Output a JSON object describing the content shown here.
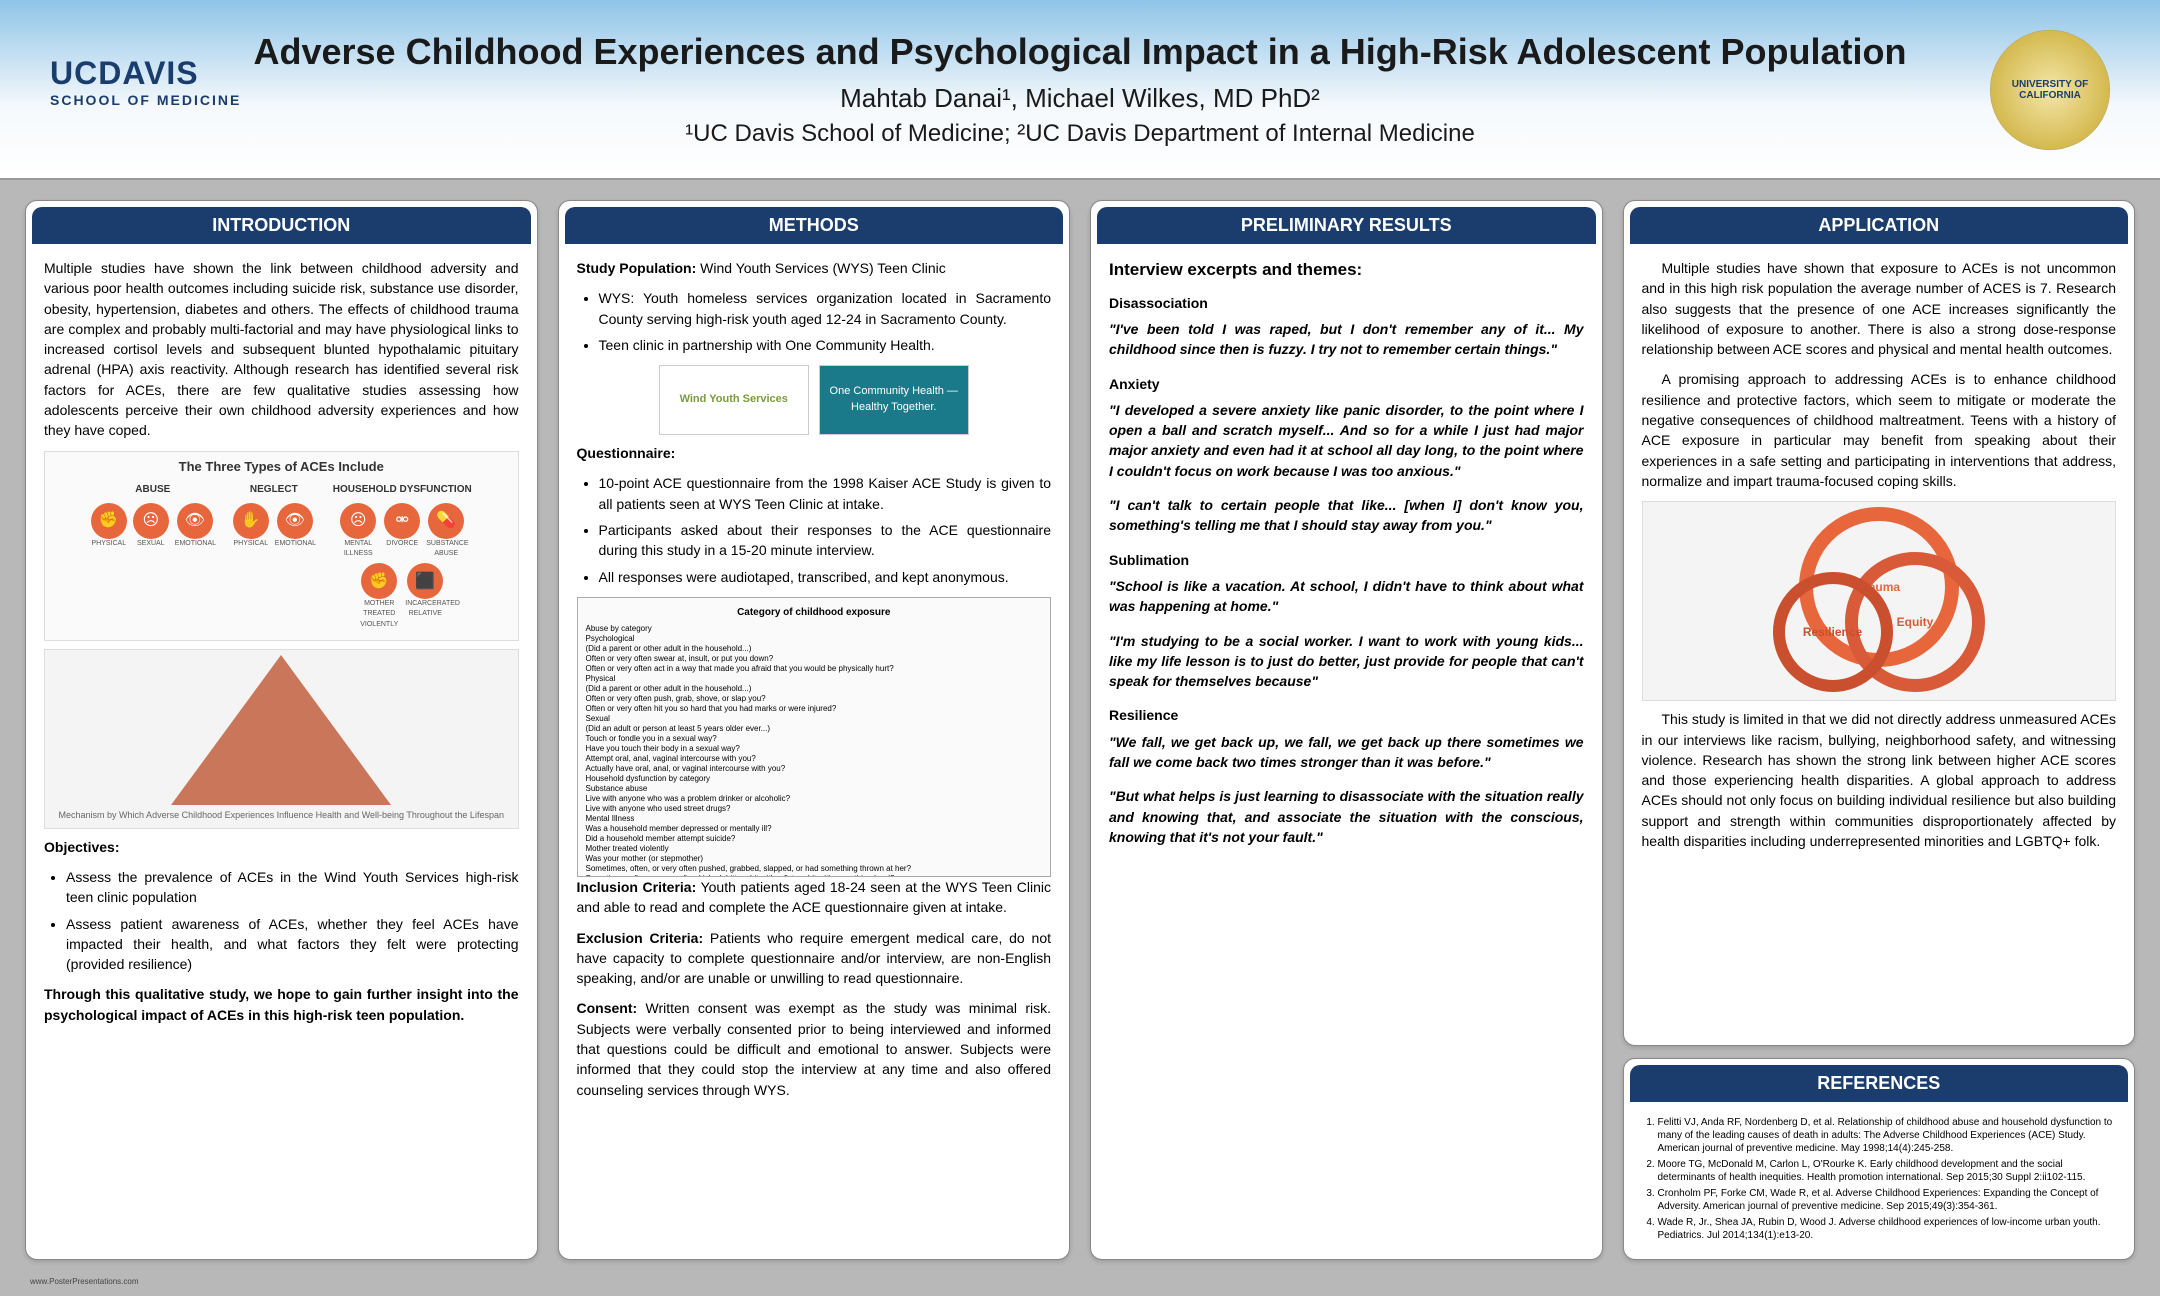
{
  "header": {
    "title": "Adverse Childhood Experiences and Psychological Impact in a High-Risk Adolescent Population",
    "authors": "Mahtab Danai¹, Michael Wilkes, MD PhD²",
    "affiliations": "¹UC Davis School of Medicine; ²UC Davis Department of Internal Medicine",
    "logo_left_main": "UCDAVIS",
    "logo_left_sub": "SCHOOL OF MEDICINE",
    "logo_right_text": "UNIVERSITY OF CALIFORNIA"
  },
  "introduction": {
    "heading": "INTRODUCTION",
    "para1": "Multiple studies have shown the link between childhood adversity and various poor health outcomes including suicide risk, substance use disorder, obesity, hypertension, diabetes and others. The effects of childhood trauma are complex and probably multi-factorial and may have physiological links to increased cortisol levels and subsequent blunted hypothalamic pituitary adrenal (HPA) axis reactivity. Although research has identified several risk factors for ACEs, there are few qualitative studies assessing how adolescents perceive their own childhood adversity experiences and how they have coped.",
    "ace_types_title": "The Three Types of ACEs Include",
    "ace_groups": [
      {
        "label": "ABUSE",
        "icons": [
          {
            "glyph": "✊",
            "caption": "PHYSICAL"
          },
          {
            "glyph": "☹",
            "caption": "SEXUAL"
          },
          {
            "glyph": "👁",
            "caption": "EMOTIONAL"
          }
        ]
      },
      {
        "label": "NEGLECT",
        "icons": [
          {
            "glyph": "✋",
            "caption": "PHYSICAL"
          },
          {
            "glyph": "👁",
            "caption": "EMOTIONAL"
          }
        ]
      },
      {
        "label": "HOUSEHOLD DYSFUNCTION",
        "icons": [
          {
            "glyph": "☹",
            "caption": "MENTAL ILLNESS"
          },
          {
            "glyph": "⚮",
            "caption": "DIVORCE"
          },
          {
            "glyph": "💊",
            "caption": "SUBSTANCE ABUSE"
          },
          {
            "glyph": "✊",
            "caption": "MOTHER TREATED VIOLENTLY"
          },
          {
            "glyph": "⬛",
            "caption": "INCARCERATED RELATIVE"
          }
        ]
      }
    ],
    "pyramid_caption": "Mechanism by Which Adverse Childhood Experiences Influence Health and Well-being Throughout the Lifespan",
    "objectives_heading": "Objectives:",
    "objectives": [
      "Assess the prevalence of ACEs in the Wind Youth Services high-risk teen clinic population",
      "Assess patient awareness of ACEs, whether they feel ACEs have impacted their health, and what factors they felt were protecting (provided resilience)"
    ],
    "closing": "Through this qualitative study, we hope to gain further insight into the psychological impact of ACEs in this high-risk teen population."
  },
  "methods": {
    "heading": "METHODS",
    "study_pop_label": "Study Population:",
    "study_pop_value": " Wind Youth Services (WYS) Teen Clinic",
    "study_pop_bullets": [
      "WYS: Youth homeless services organization located in Sacramento County serving high-risk youth aged 12-24 in Sacramento County.",
      "Teen clinic in partnership with One Community Health."
    ],
    "partner1": "Wind Youth Services",
    "partner2": "One Community Health — Healthy Together.",
    "questionnaire_label": "Questionnaire:",
    "questionnaire_bullets": [
      "10-point ACE questionnaire from the 1998 Kaiser ACE Study is given to all patients seen at WYS Teen Clinic at intake.",
      "Participants asked about their responses to the ACE questionnaire during this study in a 15-20 minute interview.",
      "All responses were audiotaped, transcribed, and kept anonymous."
    ],
    "questionnaire_fig_title": "Category of childhood exposure",
    "questionnaire_fig_text": "Abuse by category\nPsychological\n(Did a parent or other adult in the household...)\nOften or very often swear at, insult, or put you down?\nOften or very often act in a way that made you afraid that you would be physically hurt?\nPhysical\n(Did a parent or other adult in the household...)\nOften or very often push, grab, shove, or slap you?\nOften or very often hit you so hard that you had marks or were injured?\nSexual\n(Did an adult or person at least 5 years older ever...)\nTouch or fondle you in a sexual way?\nHave you touch their body in a sexual way?\nAttempt oral, anal, vaginal intercourse with you?\nActually have oral, anal, or vaginal intercourse with you?\nHousehold dysfunction by category\nSubstance abuse\nLive with anyone who was a problem drinker or alcoholic?\nLive with anyone who used street drugs?\nMental Illness\nWas a household member depressed or mentally ill?\nDid a household member attempt suicide?\nMother treated violently\nWas your mother (or stepmother)\nSometimes, often, or very often pushed, grabbed, slapped, or had something thrown at her?\nSometimes, often, or very often kicked, bitten, hit with a fist, or hit with something hard?\nEver repeatedly hit over at least a few minutes?\nEver threatened with, or hurt by, a knife or gun?\nCriminal behavior in household\nDid a household member go to prison?",
    "inclusion_label": "Inclusion Criteria:",
    "inclusion_text": " Youth patients aged 18-24 seen at the WYS Teen Clinic and able to read and complete the ACE questionnaire given at intake.",
    "exclusion_label": "Exclusion Criteria:",
    "exclusion_text": " Patients who require emergent medical care, do not have capacity to complete questionnaire and/or interview, are non-English speaking, and/or are unable or unwilling to read questionnaire.",
    "consent_label": "Consent:",
    "consent_text": " Written consent was exempt as the study was minimal risk. Subjects were verbally consented prior to being interviewed and informed that questions could be difficult and emotional to answer. Subjects were informed that they could stop the interview at any time and also offered counseling services through WYS."
  },
  "results": {
    "heading": "PRELIMINARY RESULTS",
    "intro": "Interview excerpts and themes:",
    "themes": [
      {
        "label": "Disassociation",
        "quotes": [
          "\"I've been told I was raped, but I don't remember any of it... My childhood since then is fuzzy. I try not to remember certain things.\""
        ]
      },
      {
        "label": "Anxiety",
        "quotes": [
          "\"I developed a severe anxiety like panic disorder, to the point where I open a ball and scratch myself... And so for a while I just had major major anxiety and even had it at school all day long, to the point where I couldn't focus on work because I was too anxious.\"",
          "\"I can't talk to certain people that like... [when I] don't know you, something's telling me that I should stay away from you.\""
        ]
      },
      {
        "label": "Sublimation",
        "quotes": [
          "\"School is like a vacation. At school, I didn't have to think about what was happening at home.\"",
          "\"I'm studying to be a social worker. I want to work with young kids... like my life lesson is to just do better, just provide for people that can't speak for themselves because\""
        ]
      },
      {
        "label": "Resilience",
        "quotes": [
          "\"We fall, we get back up, we fall, we get back up there sometimes we fall we come back two times stronger than it was before.\"",
          "\"But what helps is just learning to disassociate with the situation really and knowing that, and associate the situation with the conscious, knowing that it's not your fault.\""
        ]
      }
    ]
  },
  "application": {
    "heading": "APPLICATION",
    "para1": "Multiple studies have shown that exposure to ACEs is not uncommon and in this high risk population the average number of ACES is 7. Research also suggests that the presence of one ACE increases significantly the likelihood of exposure to another. There is also a strong dose-response relationship between ACE scores and physical and mental health outcomes.",
    "para2": "A promising approach to addressing ACEs is to enhance childhood resilience and protective factors, which seem to mitigate or moderate the negative consequences of childhood maltreatment. Teens with a history of ACE exposure in particular may benefit from speaking about their experiences in a safe setting and participating in interventions that address, normalize and impart trauma-focused coping skills.",
    "circles": [
      "Trauma",
      "Equity",
      "Resilience"
    ],
    "para3": "This study is limited in that we did not directly address unmeasured ACEs in our interviews like racism, bullying, neighborhood safety, and witnessing violence. Research has shown the strong link between higher ACE scores and those experiencing health disparities. A global approach to address ACEs should not only focus on building individual resilience but also building support and strength within communities disproportionately affected by health disparities including underrepresented minorities and LGBTQ+ folk."
  },
  "references": {
    "heading": "REFERENCES",
    "items": [
      "Felitti VJ, Anda RF, Nordenberg D, et al. Relationship of childhood abuse and household dysfunction to many of the leading causes of death in adults: The Adverse Childhood Experiences (ACE) Study. American journal of preventive medicine. May 1998;14(4):245-258.",
      "Moore TG, McDonald M, Carlon L, O'Rourke K. Early childhood development and the social determinants of health inequities. Health promotion international. Sep 2015;30 Suppl 2:ii102-115.",
      "Cronholm PF, Forke CM, Wade R, et al. Adverse Childhood Experiences: Expanding the Concept of Adversity. American journal of preventive medicine. Sep 2015;49(3):354-361.",
      "Wade R, Jr., Shea JA, Rubin D, Wood J. Adverse childhood experiences of low-income urban youth. Pediatrics. Jul 2014;134(1):e13-20."
    ]
  },
  "footer": "www.PosterPresentations.com",
  "colors": {
    "header_gradient_top": "#8fc4e8",
    "panel_header_bg": "#1a3d6d",
    "accent_orange": "#e8663c",
    "body_bg": "#b8b8b8"
  }
}
